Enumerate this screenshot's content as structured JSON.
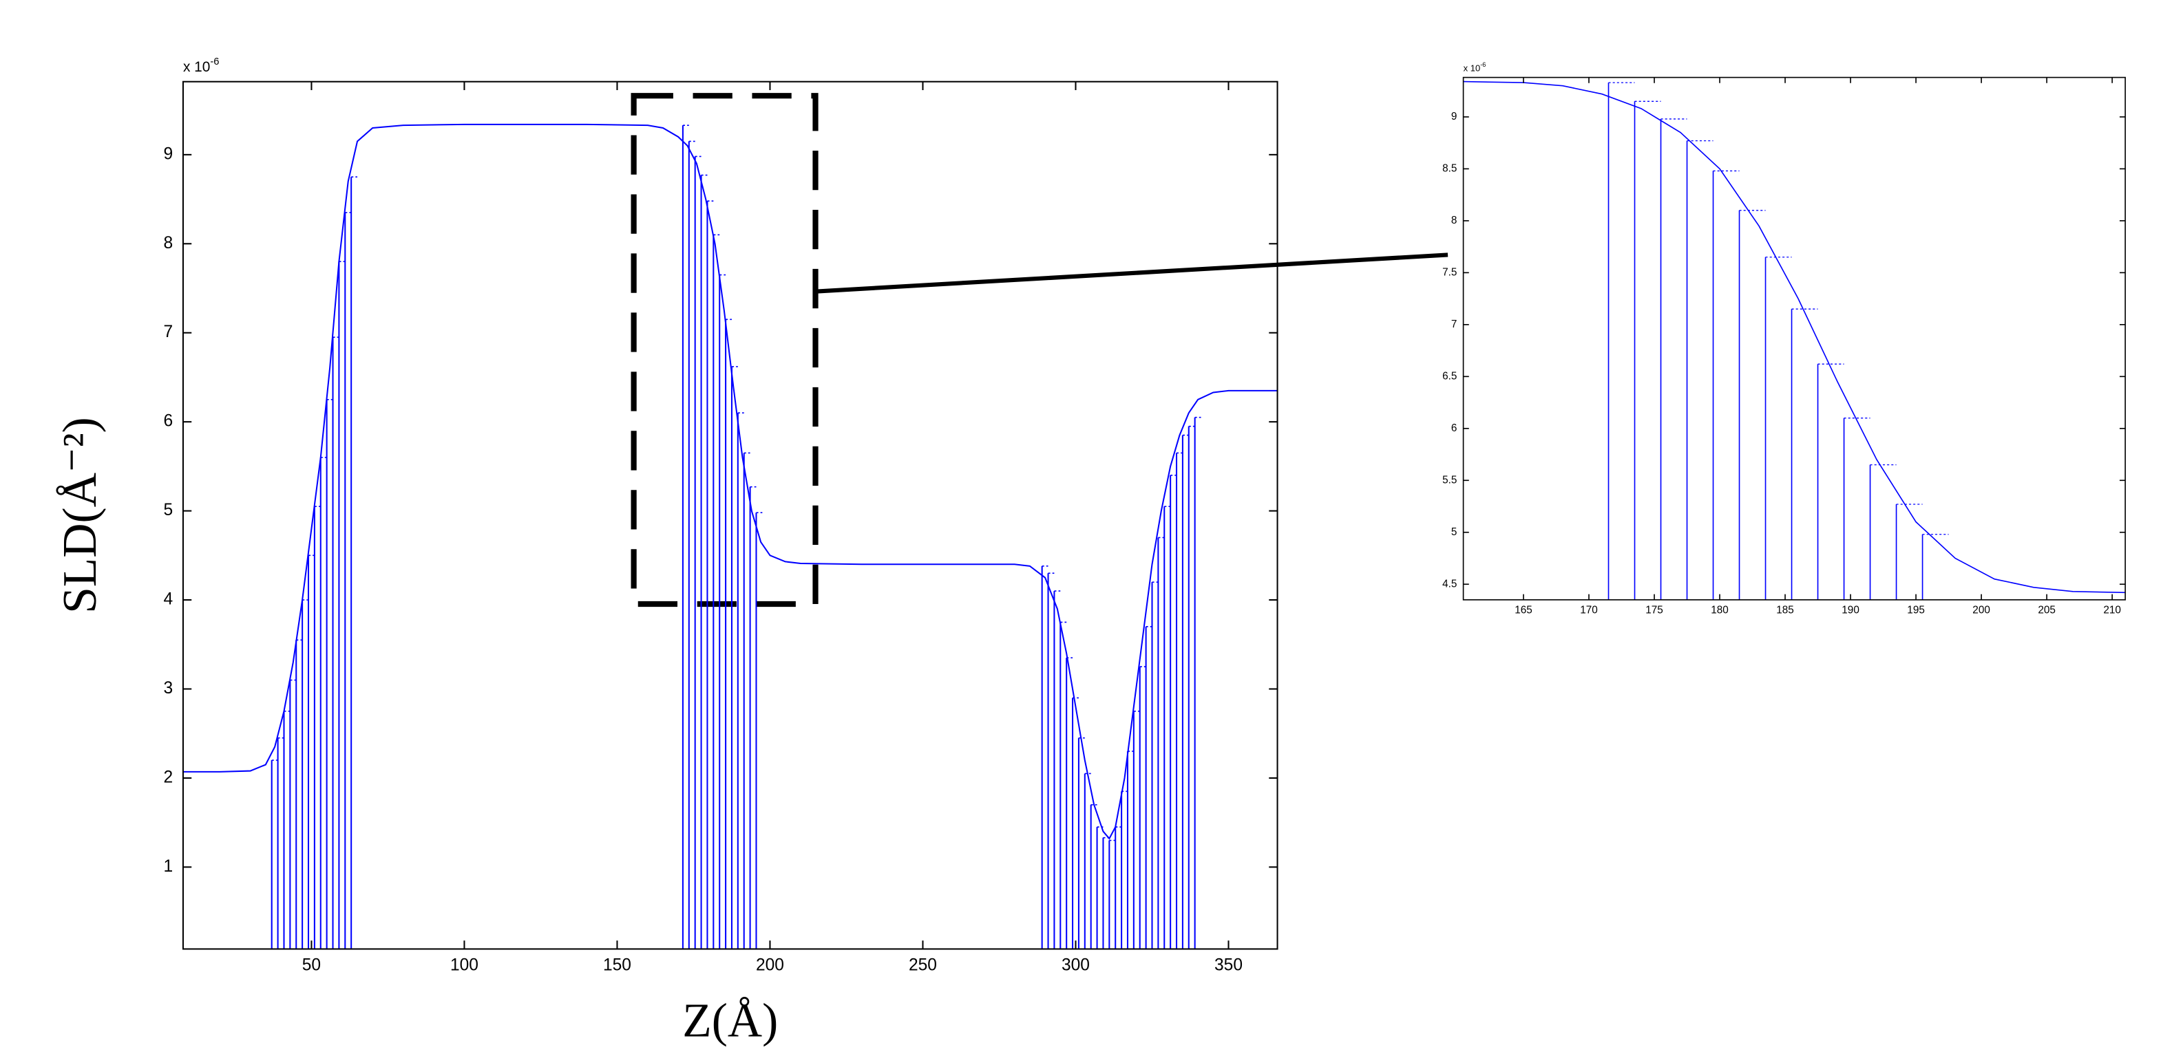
{
  "chart_data": [
    {
      "type": "line",
      "x_label": "Z(Å)",
      "y_label": "SLD(Å⁻²)",
      "y_multiplier": {
        "base": "x 10",
        "exponent": "-6"
      },
      "xlim": [
        8,
        366
      ],
      "ylim": [
        0.08,
        9.82
      ],
      "xticks": [
        50,
        100,
        150,
        200,
        250,
        300,
        350
      ],
      "yticks": [
        1,
        2,
        3,
        4,
        5,
        6,
        7,
        8,
        9
      ],
      "series": [
        {
          "style": "line",
          "color": "#0000ff",
          "x": [
            8,
            20,
            30,
            35,
            38,
            41,
            44,
            47,
            50,
            53,
            56,
            59,
            62,
            65,
            70,
            80,
            100,
            120,
            140,
            160,
            165,
            170,
            173,
            176,
            179,
            182,
            185,
            188,
            191,
            194,
            197,
            200,
            205,
            210,
            230,
            260,
            280,
            285,
            290,
            294,
            297,
            300,
            303,
            306,
            309,
            311,
            313,
            316,
            319,
            322,
            325,
            328,
            331,
            334,
            337,
            340,
            345,
            350,
            366
          ],
          "values": [
            2.07,
            2.07,
            2.08,
            2.15,
            2.35,
            2.75,
            3.3,
            4.0,
            4.8,
            5.6,
            6.6,
            7.8,
            8.7,
            9.15,
            9.3,
            9.33,
            9.34,
            9.34,
            9.34,
            9.33,
            9.3,
            9.2,
            9.1,
            8.9,
            8.5,
            8.0,
            7.25,
            6.4,
            5.6,
            5.0,
            4.65,
            4.5,
            4.43,
            4.41,
            4.4,
            4.4,
            4.4,
            4.38,
            4.25,
            3.9,
            3.4,
            2.8,
            2.2,
            1.7,
            1.4,
            1.32,
            1.45,
            2.0,
            2.8,
            3.6,
            4.4,
            5.0,
            5.5,
            5.85,
            6.1,
            6.25,
            6.33,
            6.35,
            6.35
          ]
        },
        {
          "style": "stem",
          "color": "#0000ff",
          "x": [
            37,
            39,
            41,
            43,
            45,
            47,
            49,
            51,
            53,
            55,
            57,
            59,
            61,
            63,
            171.5,
            173.5,
            175.5,
            177.5,
            179.5,
            181.5,
            183.5,
            185.5,
            187.5,
            189.5,
            191.5,
            193.5,
            195.5,
            289,
            291,
            293,
            295,
            297,
            299,
            301,
            303,
            305,
            307,
            309,
            311,
            313,
            315,
            317,
            319,
            321,
            323,
            325,
            327,
            329,
            331,
            333,
            335,
            337,
            339
          ],
          "values": [
            2.2,
            2.45,
            2.75,
            3.1,
            3.55,
            4.0,
            4.5,
            5.05,
            5.6,
            6.25,
            6.95,
            7.8,
            8.35,
            8.75,
            9.33,
            9.15,
            8.98,
            8.77,
            8.48,
            8.1,
            7.65,
            7.15,
            6.62,
            6.1,
            5.65,
            5.27,
            4.98,
            4.38,
            4.3,
            4.1,
            3.75,
            3.35,
            2.9,
            2.45,
            2.05,
            1.7,
            1.45,
            1.33,
            1.3,
            1.45,
            1.85,
            2.3,
            2.75,
            3.25,
            3.7,
            4.2,
            4.7,
            5.05,
            5.4,
            5.65,
            5.85,
            5.95,
            6.05
          ]
        }
      ]
    },
    {
      "type": "line",
      "y_multiplier": {
        "base": "x 10",
        "exponent": "-6"
      },
      "xlim": [
        160.4,
        211
      ],
      "ylim": [
        4.35,
        9.38
      ],
      "xticks": [
        165,
        170,
        175,
        180,
        185,
        190,
        195,
        200,
        205,
        210
      ],
      "yticks": [
        4.5,
        5,
        5.5,
        6,
        6.5,
        7,
        7.5,
        8,
        8.5,
        9
      ],
      "series": [
        {
          "style": "line",
          "color": "#0000ff",
          "x": [
            160.4,
            165,
            168,
            171,
            174,
            177,
            180,
            183,
            186,
            189,
            192,
            195,
            198,
            201,
            204,
            207,
            211
          ],
          "values": [
            9.34,
            9.33,
            9.3,
            9.22,
            9.08,
            8.85,
            8.5,
            7.95,
            7.25,
            6.45,
            5.7,
            5.1,
            4.75,
            4.55,
            4.47,
            4.43,
            4.42
          ]
        },
        {
          "style": "stem",
          "color": "#0000ff",
          "x": [
            171.5,
            173.5,
            175.5,
            177.5,
            179.5,
            181.5,
            183.5,
            185.5,
            187.5,
            189.5,
            191.5,
            193.5,
            195.5
          ],
          "values": [
            9.33,
            9.15,
            8.98,
            8.77,
            8.48,
            8.1,
            7.65,
            7.15,
            6.62,
            6.1,
            5.65,
            5.27,
            4.98
          ]
        }
      ]
    }
  ]
}
